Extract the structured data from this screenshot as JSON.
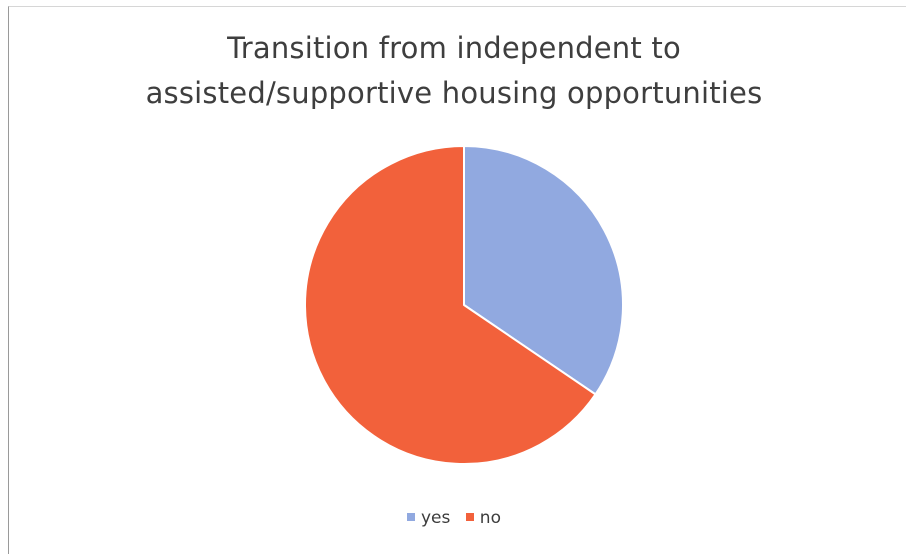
{
  "chart_data": {
    "type": "pie",
    "title_lines": [
      "Transition from independent to",
      "assisted/supportive housing opportunities"
    ],
    "slices": [
      {
        "label": "yes",
        "value": 34.5,
        "color": "#91a9e0"
      },
      {
        "label": "no",
        "value": 65.5,
        "color": "#f2613b"
      }
    ],
    "legend_position": "bottom"
  }
}
